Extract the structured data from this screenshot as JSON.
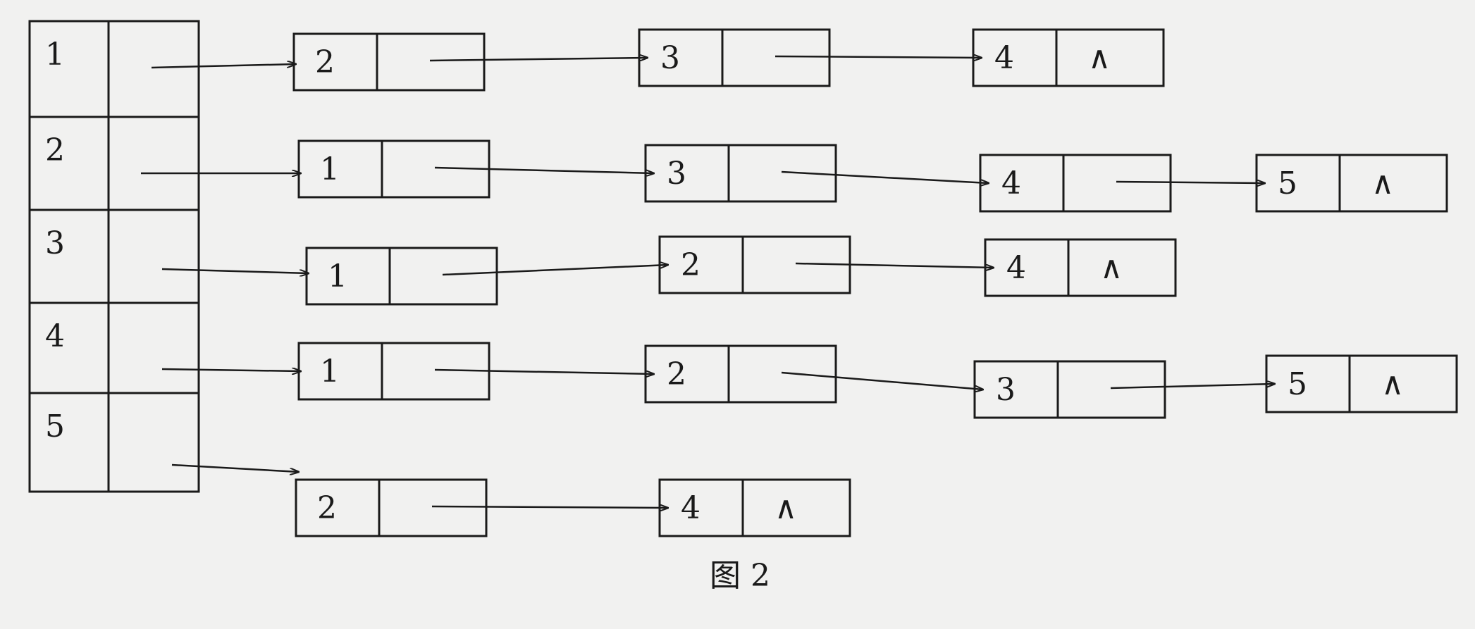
{
  "caption": "图 2",
  "null_symbol": "∧",
  "head_table": [
    {
      "vertex": "1"
    },
    {
      "vertex": "2"
    },
    {
      "vertex": "3"
    },
    {
      "vertex": "4"
    },
    {
      "vertex": "5"
    }
  ],
  "adjacency_lists": [
    {
      "vertex": "1",
      "nodes": [
        {
          "value": "2",
          "next": ""
        },
        {
          "value": "3",
          "next": ""
        },
        {
          "value": "4",
          "next": "∧"
        }
      ]
    },
    {
      "vertex": "2",
      "nodes": [
        {
          "value": "1",
          "next": ""
        },
        {
          "value": "3",
          "next": ""
        },
        {
          "value": "4",
          "next": ""
        },
        {
          "value": "5",
          "next": "∧"
        }
      ]
    },
    {
      "vertex": "3",
      "nodes": [
        {
          "value": "1",
          "next": ""
        },
        {
          "value": "2",
          "next": ""
        },
        {
          "value": "4",
          "next": "∧"
        }
      ]
    },
    {
      "vertex": "4",
      "nodes": [
        {
          "value": "1",
          "next": ""
        },
        {
          "value": "2",
          "next": ""
        },
        {
          "value": "3",
          "next": ""
        },
        {
          "value": "5",
          "next": "∧"
        }
      ]
    },
    {
      "vertex": "5",
      "nodes": [
        {
          "value": "2",
          "next": ""
        },
        {
          "value": "4",
          "next": "∧"
        }
      ]
    }
  ]
}
